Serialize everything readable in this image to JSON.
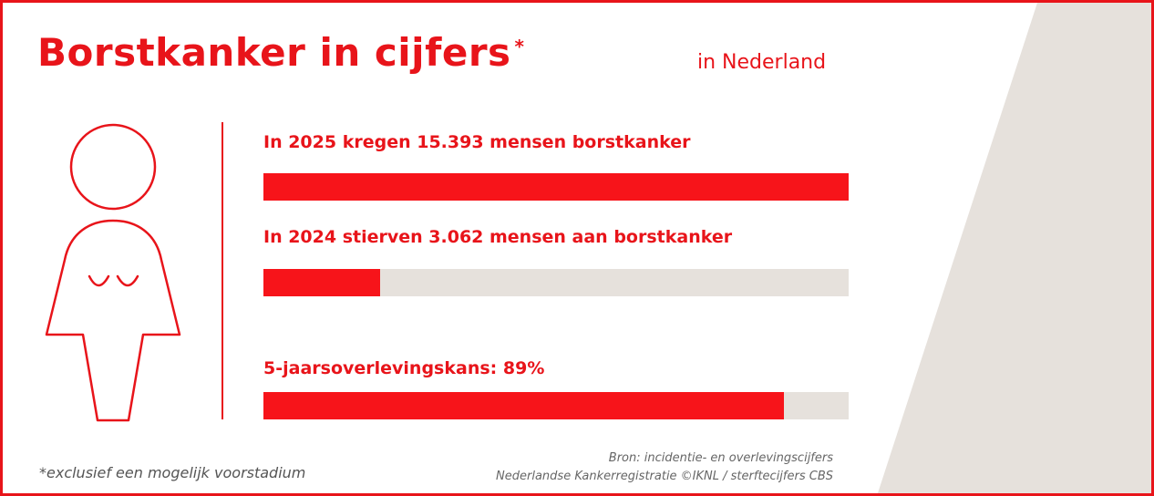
{
  "header": {
    "title": "Borstkanker in cijfers",
    "title_marker": "*",
    "region": "in Nederland"
  },
  "colors": {
    "accent": "#e8141a",
    "bar_fill": "#f7141a",
    "bar_track": "#e6e1dc",
    "background_shape": "#e6e1dc"
  },
  "icons": {
    "figure": "woman-silhouette-icon"
  },
  "chart_data": {
    "type": "bar",
    "orientation": "horizontal",
    "categories": [
      "In 2025 kregen 15.393 mensen borstkanker",
      "In 2024 stierven 3.062 mensen aan borstkanker",
      "5-jaarsoverlevingskans: 89%"
    ],
    "values": [
      15393,
      3062,
      89
    ],
    "max_values": [
      15393,
      15393,
      100
    ],
    "fractions": [
      1.0,
      0.199,
      0.89
    ],
    "title": "Borstkanker in cijfers",
    "xlabel": "",
    "ylabel": "",
    "grid": false,
    "legend": "none"
  },
  "footer": {
    "footnote": "*exclusief een mogelijk voorstadium",
    "source_line1": "Bron: incidentie- en overlevingscijfers",
    "source_line2": "Nederlandse Kankerregistratie ©IKNL / sterftecijfers CBS"
  }
}
